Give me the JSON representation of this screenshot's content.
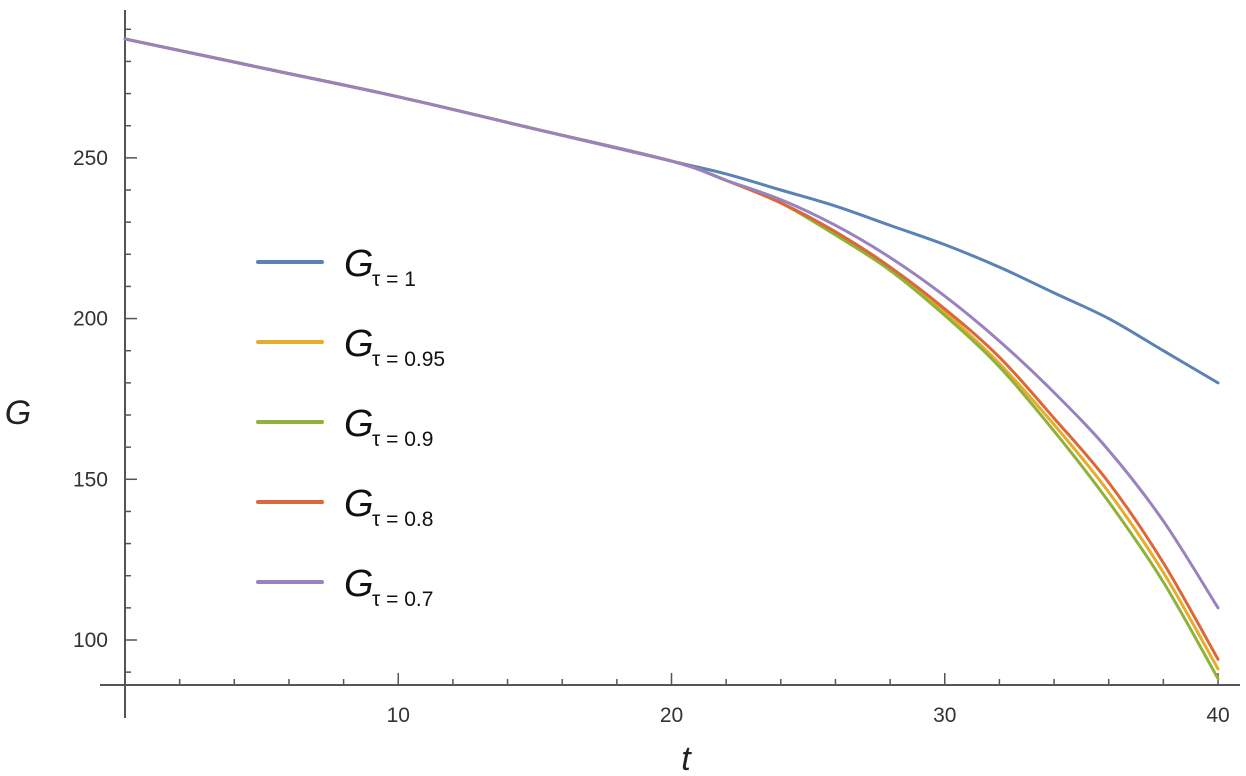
{
  "chart_data": {
    "type": "line",
    "xlabel": "t",
    "ylabel": "G",
    "xlim": [
      0,
      40
    ],
    "ylim": [
      86,
      296
    ],
    "x_ticks": [
      10,
      20,
      30,
      40
    ],
    "y_ticks": [
      100,
      150,
      200,
      250
    ],
    "grid": false,
    "legend_position": "left",
    "x": [
      0,
      5,
      10,
      15,
      20,
      22,
      24,
      26,
      28,
      30,
      32,
      34,
      36,
      38,
      40
    ],
    "series": [
      {
        "legend_main": "G",
        "legend_sub": "τ = 1",
        "color": "#5b82b5",
        "values": [
          287,
          278,
          269,
          259,
          249,
          245,
          240,
          235,
          229,
          223,
          216,
          208,
          200,
          190,
          180
        ]
      },
      {
        "legend_main": "G",
        "legend_sub": "τ = 0.95",
        "color": "#e8ab2c",
        "values": [
          287,
          278,
          269,
          259,
          249,
          243,
          236,
          227,
          216,
          202,
          186,
          167,
          146,
          121,
          91
        ]
      },
      {
        "legend_main": "G",
        "legend_sub": "τ = 0.9",
        "color": "#8fb33a",
        "values": [
          287,
          278,
          269,
          259,
          249,
          243,
          236,
          226,
          215,
          201,
          185,
          165,
          143,
          118,
          88
        ]
      },
      {
        "legend_main": "G",
        "legend_sub": "τ = 0.8",
        "color": "#d9683b",
        "values": [
          287,
          278,
          269,
          259,
          249,
          243,
          236,
          227,
          216,
          203,
          188,
          169,
          149,
          124,
          94
        ]
      },
      {
        "legend_main": "G",
        "legend_sub": "τ = 0.7",
        "color": "#9a82bf",
        "values": [
          287,
          278,
          269,
          259,
          249,
          243,
          237,
          229,
          219,
          207,
          193,
          177,
          159,
          137,
          110
        ]
      }
    ]
  }
}
